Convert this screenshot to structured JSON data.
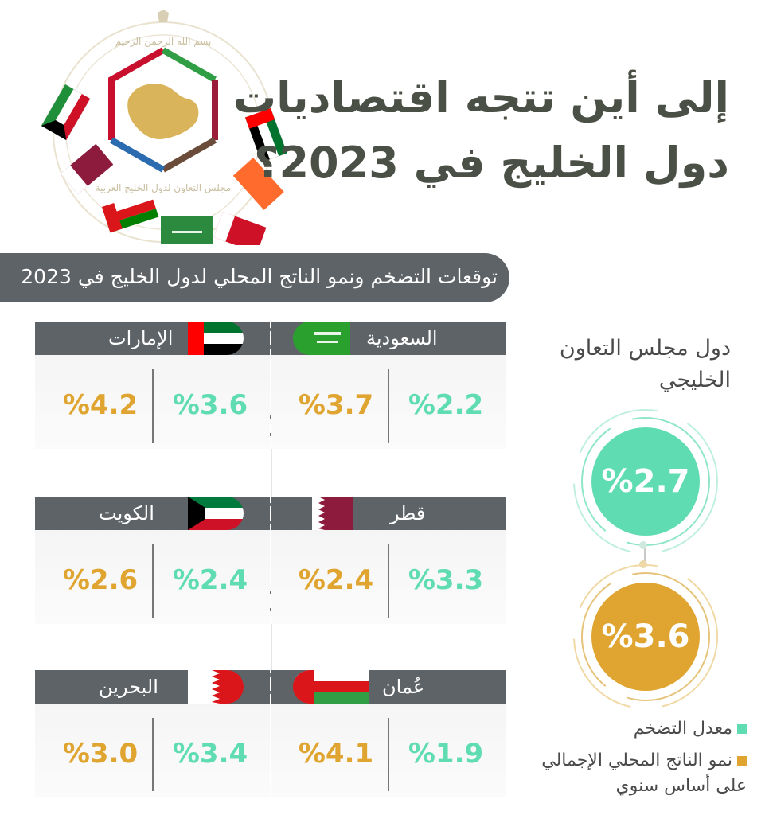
{
  "title": {
    "line1": "إلى أين تتجه اقتصاديات",
    "line2": "دول الخليج في 2023؟"
  },
  "subtitle": "توقعات التضخم ونمو الناتج المحلي لدول الخليج في 2023",
  "emblem": {
    "top_text": "بسم الله الرحمن الرحيم",
    "bottom_text": "مجلس التعاون لدول الخليج العربية"
  },
  "countries": [
    {
      "id": "saudi",
      "name": "السعودية",
      "inflation": "%2.2",
      "gdp": "%3.7"
    },
    {
      "id": "uae",
      "name": "الإمارات",
      "inflation": "%3.6",
      "gdp": "%4.2"
    },
    {
      "id": "qatar",
      "name": "قطر",
      "inflation": "%3.3",
      "gdp": "%2.4"
    },
    {
      "id": "kuwait",
      "name": "الكويت",
      "inflation": "%2.4",
      "gdp": "%2.6"
    },
    {
      "id": "oman",
      "name": "عُمان",
      "inflation": "%1.9",
      "gdp": "%4.1"
    },
    {
      "id": "bahrain",
      "name": "البحرين",
      "inflation": "%3.4",
      "gdp": "%3.0"
    }
  ],
  "gcc": {
    "label": "دول مجلس التعاون الخليجي",
    "inflation": "%2.7",
    "gdp": "%3.6"
  },
  "legend": {
    "inflation": "معدل التضخم",
    "gdp": "نمو الناتج المحلي الإجمالي على أساس سنوي"
  },
  "colors": {
    "inflation": "#5fdcb2",
    "gdp": "#dfa530",
    "header": "#5e6367",
    "title": "#4a5045"
  }
}
